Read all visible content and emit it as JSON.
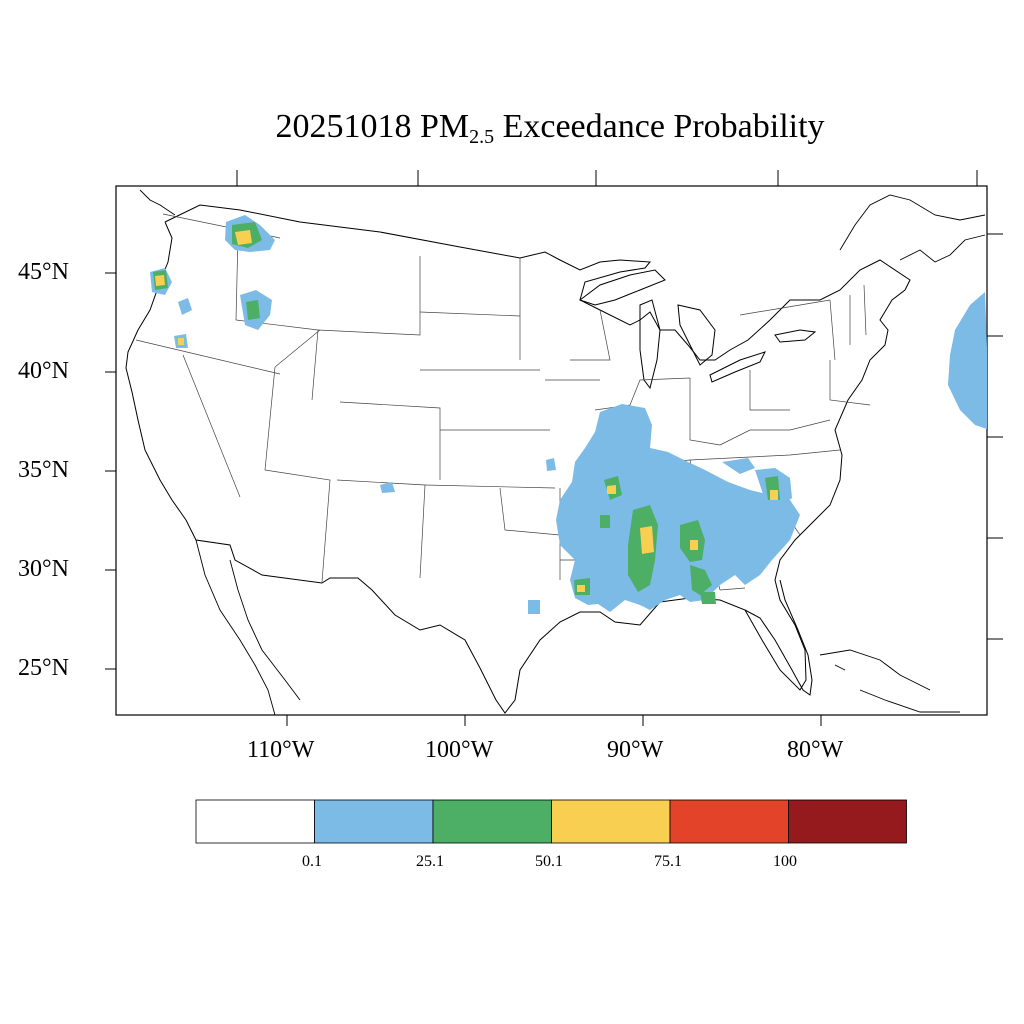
{
  "title": {
    "date": "20251018",
    "pm": "PM",
    "sub": "2.5",
    "rest": "Exceedance Probability"
  },
  "axes": {
    "lat_labels": [
      "45°N",
      "40°N",
      "35°N",
      "30°N",
      "25°N"
    ],
    "lon_labels": [
      "110°W",
      "100°W",
      "90°W",
      "80°W"
    ]
  },
  "colorbar": {
    "labels": [
      "0.1",
      "25.1",
      "50.1",
      "75.1",
      "100"
    ],
    "colors": [
      "#ffffff",
      "#7bbbe6",
      "#4caf65",
      "#f8cf50",
      "#e24329",
      "#951a1d"
    ]
  },
  "colors": {
    "frame": "#000000",
    "state_lines": "#333333",
    "prob_0_25": "#7bbbe6",
    "prob_25_50": "#4caf65",
    "prob_50_75": "#f8cf50"
  }
}
